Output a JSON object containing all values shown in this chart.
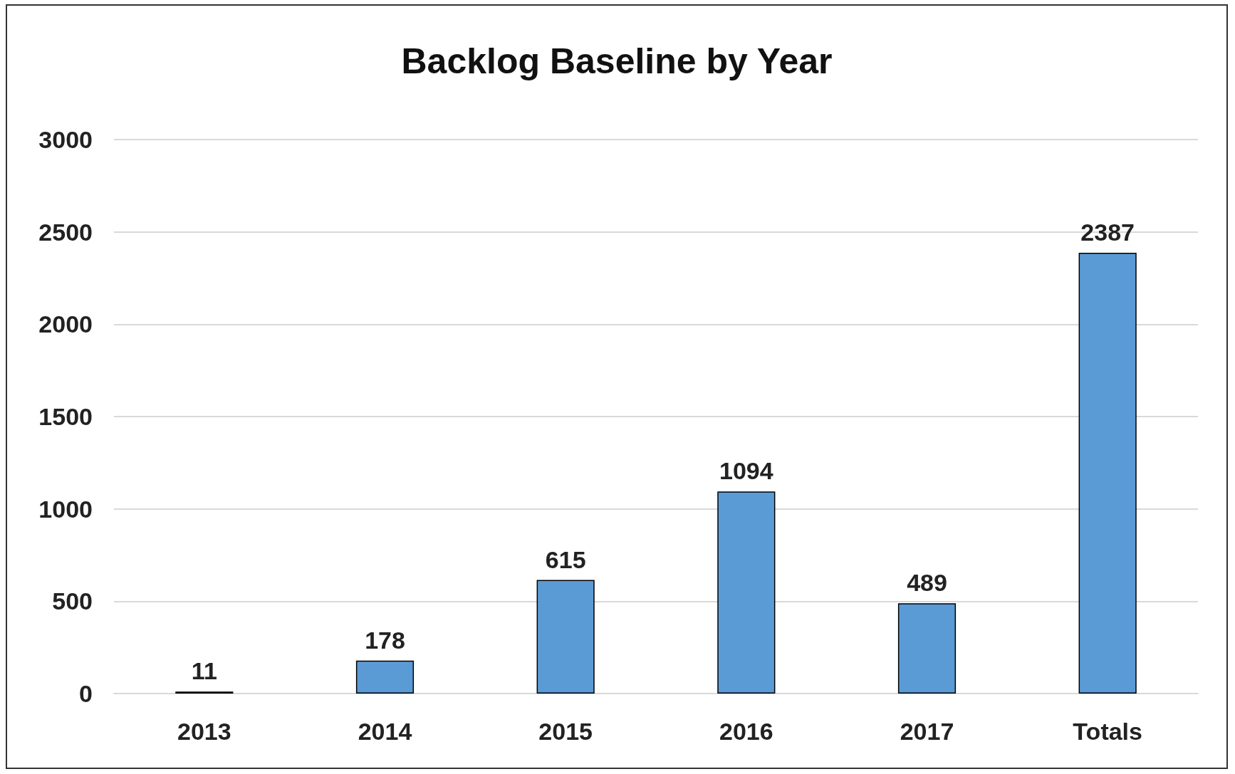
{
  "chart_data": {
    "type": "bar",
    "title": "Backlog Baseline by Year",
    "categories": [
      "2013",
      "2014",
      "2015",
      "2016",
      "2017",
      "Totals"
    ],
    "values": [
      11,
      178,
      615,
      1094,
      489,
      2387
    ],
    "color": "#5b9bd5",
    "ylim": [
      0,
      3000
    ],
    "yticks": [
      0,
      500,
      1000,
      1500,
      2000,
      2500,
      3000
    ],
    "grid": "y",
    "data_labels": true
  }
}
